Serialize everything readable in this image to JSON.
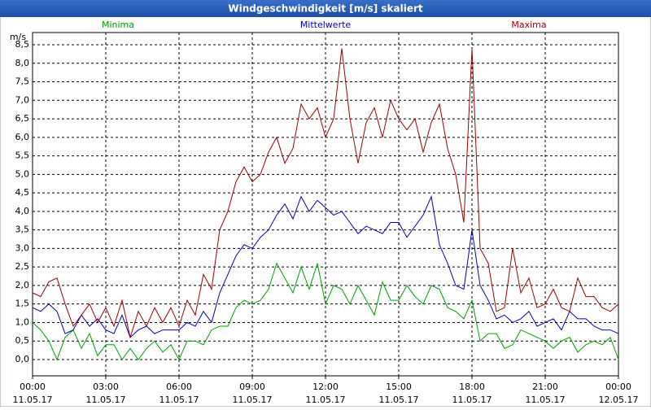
{
  "chart_data": {
    "type": "line",
    "title": "Windgeschwindigkeit [m/s] skaliert",
    "y_unit": "m/s",
    "x": [
      0,
      20,
      40,
      60,
      80,
      100,
      120,
      140,
      160,
      180,
      200,
      220,
      240,
      260,
      280,
      300,
      320,
      340,
      360,
      380,
      400,
      420,
      440,
      460,
      480,
      500,
      520,
      540,
      560,
      580,
      600,
      620,
      640,
      660,
      680,
      700,
      720,
      740,
      760,
      780,
      800,
      820,
      840,
      860,
      880,
      900,
      920,
      940,
      960,
      980,
      1000,
      1020,
      1040,
      1060,
      1080,
      1100,
      1120,
      1140,
      1160,
      1180,
      1200,
      1220,
      1240,
      1260,
      1280,
      1300,
      1320,
      1340,
      1360,
      1380,
      1400,
      1420,
      1440
    ],
    "series": [
      {
        "name": "Minima",
        "color": "#00a000",
        "values": [
          1.0,
          0.8,
          0.5,
          0.0,
          0.6,
          0.8,
          0.3,
          0.7,
          0.1,
          0.4,
          0.4,
          0.0,
          0.3,
          0.0,
          0.3,
          0.5,
          0.2,
          0.4,
          0.0,
          0.5,
          0.5,
          0.4,
          0.8,
          0.9,
          0.9,
          1.4,
          1.6,
          1.5,
          1.6,
          1.9,
          2.6,
          2.2,
          1.8,
          2.5,
          1.9,
          2.6,
          1.5,
          2.0,
          1.9,
          1.5,
          2.0,
          1.6,
          1.2,
          2.1,
          1.6,
          1.6,
          2.0,
          1.7,
          1.5,
          2.0,
          1.9,
          1.4,
          1.3,
          1.1,
          1.6,
          0.5,
          0.7,
          0.7,
          0.3,
          0.4,
          0.8,
          0.7,
          0.6,
          0.5,
          0.3,
          0.5,
          0.6,
          0.2,
          0.4,
          0.5,
          0.4,
          0.6,
          0.0
        ]
      },
      {
        "name": "Mittelwerte",
        "color": "#0000c0",
        "values": [
          1.4,
          1.3,
          1.5,
          1.3,
          0.7,
          0.8,
          1.2,
          0.9,
          1.1,
          0.8,
          0.7,
          1.2,
          0.6,
          0.8,
          0.9,
          0.7,
          0.8,
          0.8,
          0.8,
          1.0,
          0.9,
          1.3,
          1.0,
          1.8,
          2.3,
          2.8,
          3.1,
          3.0,
          3.3,
          3.5,
          3.9,
          4.2,
          3.8,
          4.4,
          4.0,
          4.3,
          4.1,
          3.9,
          4.0,
          3.7,
          3.4,
          3.6,
          3.5,
          3.4,
          3.7,
          3.7,
          3.3,
          3.6,
          3.9,
          4.4,
          3.1,
          2.6,
          2.0,
          1.9,
          3.5,
          2.0,
          1.6,
          1.1,
          1.2,
          1.0,
          1.1,
          1.3,
          0.9,
          1.0,
          1.1,
          0.8,
          1.3,
          1.1,
          1.1,
          0.9,
          0.8,
          0.8,
          0.7
        ]
      },
      {
        "name": "Maxima",
        "color": "#a00000",
        "values": [
          1.8,
          1.7,
          2.1,
          2.2,
          1.5,
          0.9,
          1.2,
          1.5,
          1.0,
          1.4,
          0.9,
          1.6,
          0.6,
          1.3,
          0.9,
          1.4,
          1.0,
          1.4,
          0.9,
          1.6,
          1.2,
          2.3,
          1.9,
          3.5,
          4.0,
          4.8,
          5.2,
          4.8,
          5.0,
          5.6,
          6.0,
          5.3,
          5.7,
          6.9,
          6.5,
          6.8,
          6.0,
          6.5,
          8.4,
          6.5,
          5.3,
          6.4,
          6.8,
          6.0,
          7.0,
          6.5,
          6.2,
          6.5,
          5.6,
          6.4,
          6.9,
          5.7,
          5.0,
          3.7,
          8.4,
          3.0,
          2.6,
          1.3,
          1.4,
          3.0,
          1.8,
          2.2,
          1.4,
          1.5,
          1.9,
          1.4,
          1.3,
          2.2,
          1.7,
          1.7,
          1.4,
          1.3,
          1.5
        ]
      }
    ],
    "xlim": [
      0,
      1440
    ],
    "ylim": [
      -0.44,
      8.83
    ],
    "xticks": [
      {
        "value": 0,
        "label": "00:00"
      },
      {
        "value": 180,
        "label": "03:00"
      },
      {
        "value": 360,
        "label": "06:00"
      },
      {
        "value": 540,
        "label": "09:00"
      },
      {
        "value": 720,
        "label": "12:00"
      },
      {
        "value": 900,
        "label": "15:00"
      },
      {
        "value": 1080,
        "label": "18:00"
      },
      {
        "value": 1260,
        "label": "21:00"
      },
      {
        "value": 1440,
        "label": "00:00"
      }
    ],
    "xtick_dates": [
      "11.05.17",
      "11.05.17",
      "11.05.17",
      "11.05.17",
      "11.05.17",
      "11.05.17",
      "11.05.17",
      "11.05.17",
      "12.05.17"
    ],
    "yticks": [
      {
        "value": 0,
        "label": "0,0"
      },
      {
        "value": 0.5,
        "label": "0,5"
      },
      {
        "value": 1,
        "label": "1,0"
      },
      {
        "value": 1.5,
        "label": "1,5"
      },
      {
        "value": 2,
        "label": "2,0"
      },
      {
        "value": 2.5,
        "label": "2,5"
      },
      {
        "value": 3,
        "label": "3,0"
      },
      {
        "value": 3.5,
        "label": "3,5"
      },
      {
        "value": 4,
        "label": "4,0"
      },
      {
        "value": 4.5,
        "label": "4,5"
      },
      {
        "value": 5,
        "label": "5,0"
      },
      {
        "value": 5.5,
        "label": "5,5"
      },
      {
        "value": 6,
        "label": "6,0"
      },
      {
        "value": 6.5,
        "label": "6,5"
      },
      {
        "value": 7,
        "label": "7,0"
      },
      {
        "value": 7.5,
        "label": "7,5"
      },
      {
        "value": 8,
        "label": "8,0"
      },
      {
        "value": 8.5,
        "label": "8,5"
      }
    ],
    "grid": true
  }
}
